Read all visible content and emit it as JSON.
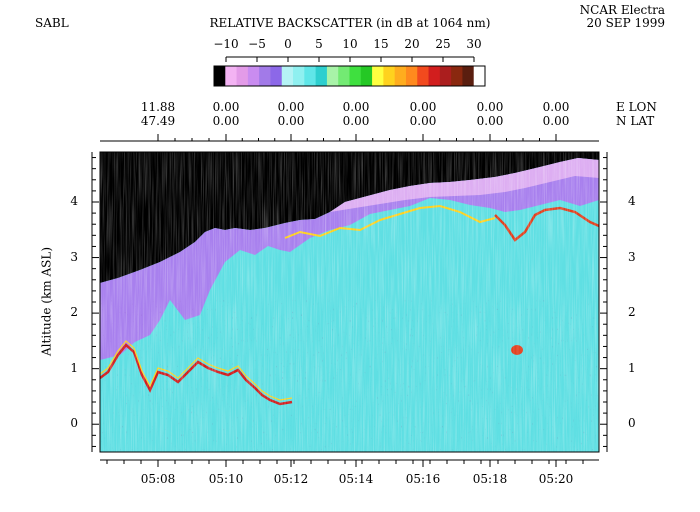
{
  "header": {
    "instrument": "SABL",
    "title": "RELATIVE BACKSCATTER (in dB at 1064 nm)",
    "platform": "NCAR Electra",
    "date": "20 SEP 1999"
  },
  "colorbar": {
    "tick_labels": [
      "−10",
      "−5",
      "0",
      "5",
      "10",
      "15",
      "20",
      "25",
      "30"
    ],
    "colors": [
      "#000000",
      "#f3b3f3",
      "#e39be8",
      "#c98cf0",
      "#a27ae8",
      "#8c68e8",
      "#b5f3f5",
      "#8ff0f0",
      "#5fe6e8",
      "#2dcfcf",
      "#a8f3a8",
      "#73ea73",
      "#3fe03f",
      "#25c825",
      "#ffff40",
      "#ffd21e",
      "#ffad1e",
      "#ff8a1e",
      "#f24a1e",
      "#d21e1e",
      "#ab1e1e",
      "#8a280f",
      "#5a1e0f",
      "#ffffff"
    ]
  },
  "nav_axis": {
    "lon_label": "E LON",
    "lat_label": "N LAT",
    "lon_values": [
      "11.88",
      "0.00",
      "0.00",
      "0.00",
      "0.00",
      "0.00",
      "0.00"
    ],
    "lat_values": [
      "47.49",
      "0.00",
      "0.00",
      "0.00",
      "0.00",
      "0.00",
      "0.00"
    ]
  },
  "chart_data": {
    "type": "heatmap",
    "title": "RELATIVE BACKSCATTER (in dB at 1064 nm)",
    "xlabel": "",
    "ylabel": "Altitude (km ASL)",
    "x_tick_labels": [
      "05:08",
      "05:10",
      "05:12",
      "05:14",
      "05:16",
      "05:18",
      "05:20"
    ],
    "y_ticks": [
      0,
      1,
      2,
      3,
      4
    ],
    "ylim": [
      -0.5,
      4.9
    ],
    "colorbar_range": [
      -10,
      30
    ],
    "colorbar_units": "dB"
  }
}
